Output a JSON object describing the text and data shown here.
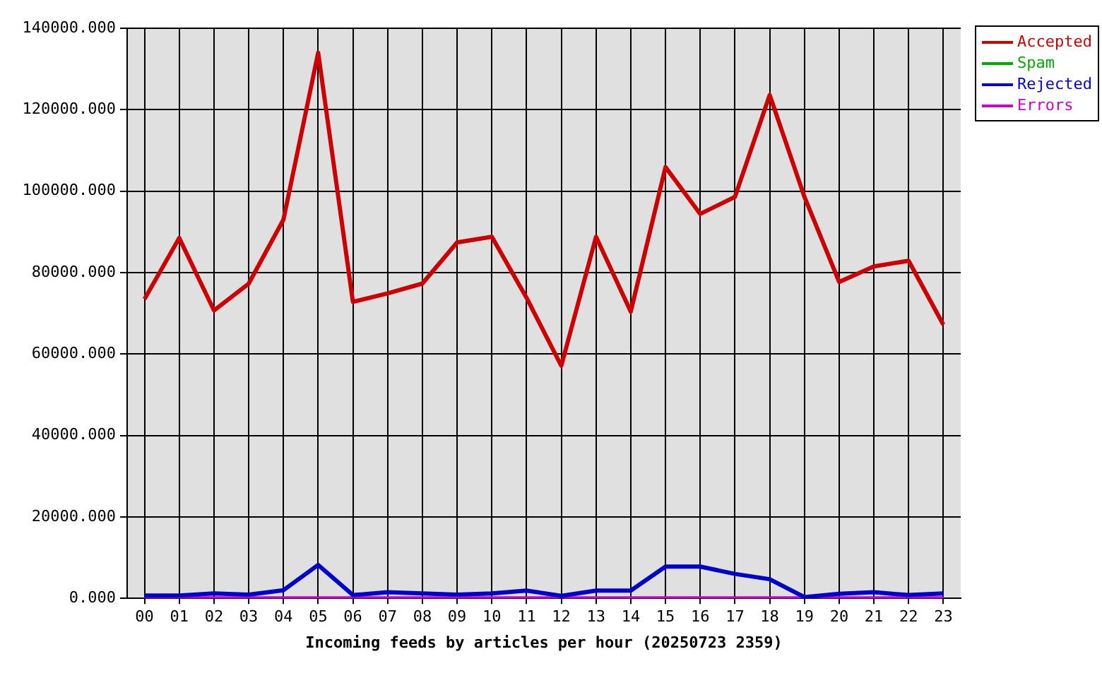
{
  "chart_data": {
    "type": "line",
    "xlabel": "Incoming feeds by articles per hour (20250723 2359)",
    "categories": [
      "00",
      "01",
      "02",
      "03",
      "04",
      "05",
      "06",
      "07",
      "08",
      "09",
      "10",
      "11",
      "12",
      "13",
      "14",
      "15",
      "16",
      "17",
      "18",
      "19",
      "20",
      "21",
      "22",
      "23"
    ],
    "series": [
      {
        "name": "Accepted",
        "color": "#cc0000",
        "values": [
          73500,
          88500,
          70700,
          77300,
          93000,
          134000,
          72800,
          74900,
          77300,
          87400,
          88800,
          73800,
          57100,
          88800,
          70400,
          105900,
          94400,
          98600,
          123600,
          98600,
          77700,
          81500,
          82900,
          67200
        ]
      },
      {
        "name": "Spam",
        "color": "#00aa00",
        "values": [
          null,
          null,
          null,
          null,
          null,
          null,
          null,
          null,
          null,
          null,
          null,
          null,
          null,
          null,
          null,
          null,
          null,
          null,
          null,
          null,
          null,
          null,
          null,
          null
        ]
      },
      {
        "name": "Rejected",
        "color": "#0000cc",
        "values": [
          700,
          700,
          1200,
          900,
          2000,
          8200,
          800,
          1500,
          1200,
          900,
          1200,
          1900,
          600,
          1900,
          1900,
          7800,
          7800,
          6000,
          4700,
          300,
          1100,
          1500,
          800,
          1200
        ]
      },
      {
        "name": "Errors",
        "color": "#cc00cc",
        "values": [
          0,
          0,
          0,
          0,
          0,
          0,
          0,
          0,
          0,
          0,
          0,
          0,
          0,
          0,
          0,
          0,
          0,
          0,
          0,
          0,
          0,
          0,
          0,
          0
        ]
      }
    ],
    "ylim": [
      0,
      140000
    ],
    "yticks": [
      {
        "value": 0,
        "label": "0.000"
      },
      {
        "value": 20000,
        "label": "20000.000"
      },
      {
        "value": 40000,
        "label": "40000.000"
      },
      {
        "value": 60000,
        "label": "60000.000"
      },
      {
        "value": 80000,
        "label": "80000.000"
      },
      {
        "value": 100000,
        "label": "100000.000"
      },
      {
        "value": 120000,
        "label": "120000.000"
      },
      {
        "value": 140000,
        "label": "140000.000"
      }
    ],
    "grid": true,
    "legend": "top right",
    "marker": "none",
    "line_style": "solid"
  }
}
